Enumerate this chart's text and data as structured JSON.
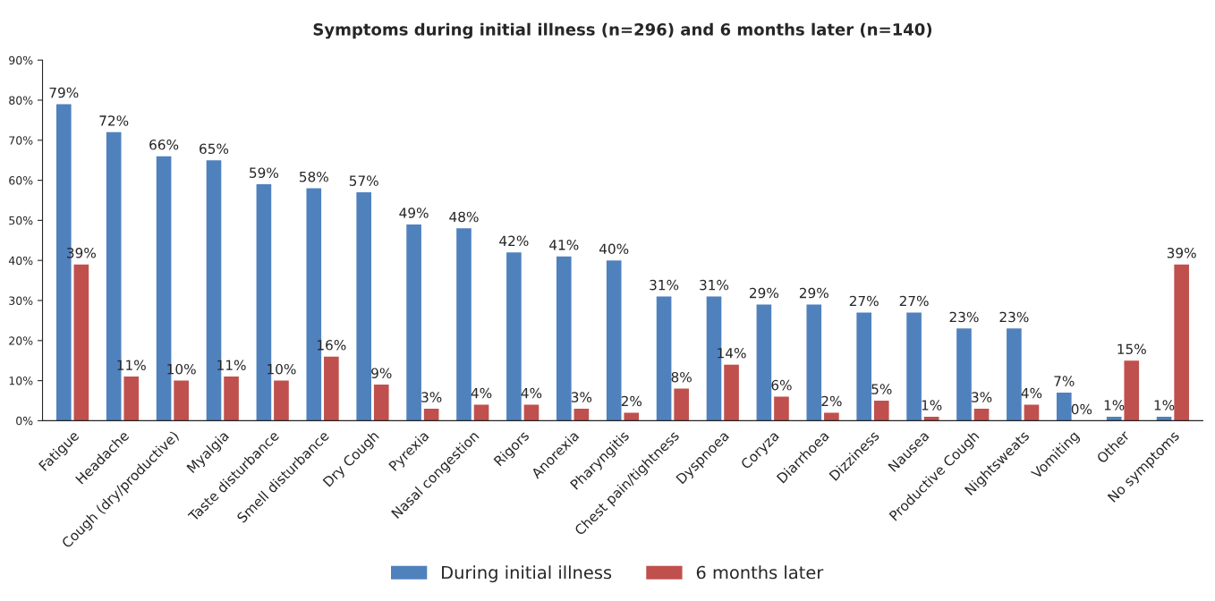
{
  "chart_data": {
    "type": "bar",
    "title": "Symptoms during initial illness (n=296) and 6 months later (n=140)",
    "categories": [
      "Fatigue",
      "Headache",
      "Cough (dry/productive)",
      "Myalgia",
      "Taste disturbance",
      "Smell disturbance",
      "Dry Cough",
      "Pyrexia",
      "Nasal congestion",
      "Rigors",
      "Anorexia",
      "Pharyngitis",
      "Chest pain/tightness",
      "Dyspnoea",
      "Coryza",
      "Diarrhoea",
      "Dizziness",
      "Nausea",
      "Productive Cough",
      "Nightsweats",
      "Vomiting",
      "Other",
      "No symptoms"
    ],
    "series": [
      {
        "name": "During initial illness",
        "color": "#4f81bd",
        "values": [
          79,
          72,
          66,
          65,
          59,
          58,
          57,
          49,
          48,
          42,
          41,
          40,
          31,
          31,
          29,
          29,
          27,
          27,
          23,
          23,
          7,
          1,
          1
        ],
        "value_labels": [
          "79%",
          "72%",
          "66%",
          "65%",
          "59%",
          "58%",
          "57%",
          "49%",
          "48%",
          "42%",
          "41%",
          "40%",
          "31%",
          "31%",
          "29%",
          "29%",
          "27%",
          "27%",
          "23%",
          "23%",
          "7%",
          "1%",
          "1%"
        ]
      },
      {
        "name": "6 months later",
        "color": "#c0504d",
        "values": [
          39,
          11,
          10,
          11,
          10,
          16,
          9,
          3,
          4,
          4,
          3,
          2,
          8,
          14,
          6,
          2,
          5,
          1,
          3,
          4,
          0,
          15,
          39
        ],
        "value_labels": [
          "39%",
          "11%",
          "10%",
          "11%",
          "10%",
          "16%",
          "9%",
          "3%",
          "4%",
          "4%",
          "3%",
          "2%",
          "8%",
          "14%",
          "6%",
          "2%",
          "5%",
          "1%",
          "3%",
          "4%",
          "0%",
          "15%",
          "39%"
        ]
      }
    ],
    "ylim": [
      0,
      90
    ],
    "yticks": [
      {
        "value": 0,
        "label": "0%"
      },
      {
        "value": 10,
        "label": "10%"
      },
      {
        "value": 20,
        "label": "20%"
      },
      {
        "value": 30,
        "label": "30%"
      },
      {
        "value": 40,
        "label": "40%"
      },
      {
        "value": 50,
        "label": "50%"
      },
      {
        "value": 60,
        "label": "60%"
      },
      {
        "value": 70,
        "label": "70%"
      },
      {
        "value": 80,
        "label": "80%"
      },
      {
        "value": 90,
        "label": "90%"
      }
    ],
    "grid": false,
    "legend": "bottom"
  }
}
